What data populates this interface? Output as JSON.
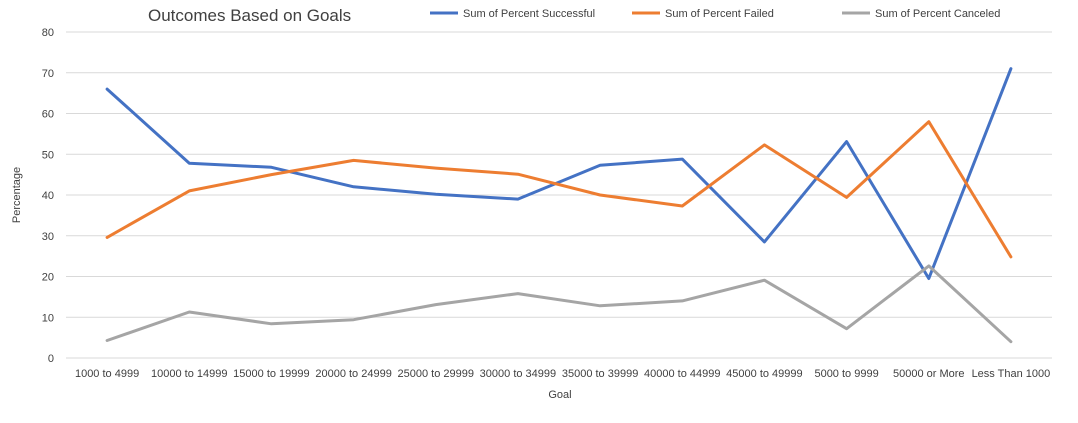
{
  "chart_data": {
    "type": "line",
    "title": "Outcomes Based on Goals",
    "xlabel": "Goal",
    "ylabel": "Percentage",
    "ylim": [
      0,
      80
    ],
    "yticks": [
      0,
      10,
      20,
      30,
      40,
      50,
      60,
      70,
      80
    ],
    "grid": true,
    "legend_position": "top",
    "categories": [
      "1000 to 4999",
      "10000 to 14999",
      "15000 to 19999",
      "20000 to 24999",
      "25000 to 29999",
      "30000 to 34999",
      "35000 to 39999",
      "40000 to 44999",
      "45000 to 49999",
      "5000 to 9999",
      "50000 or More",
      "Less Than 1000"
    ],
    "series": [
      {
        "name": "Sum of Percent Successful",
        "color": "#4472c4",
        "values": [
          66,
          47.8,
          46.8,
          42,
          40.2,
          39,
          47.3,
          48.8,
          28.5,
          53.1,
          19.5,
          71
        ]
      },
      {
        "name": "Sum of Percent Failed",
        "color": "#ed7d31",
        "values": [
          29.6,
          41,
          45,
          48.5,
          46.6,
          45.1,
          40,
          37.3,
          52.3,
          39.4,
          58,
          24.8
        ]
      },
      {
        "name": "Sum of Percent Canceled",
        "color": "#a5a5a5",
        "values": [
          4.3,
          11.3,
          8.4,
          9.4,
          13.1,
          15.8,
          12.8,
          14,
          19.1,
          7.2,
          22.6,
          4
        ]
      }
    ]
  }
}
